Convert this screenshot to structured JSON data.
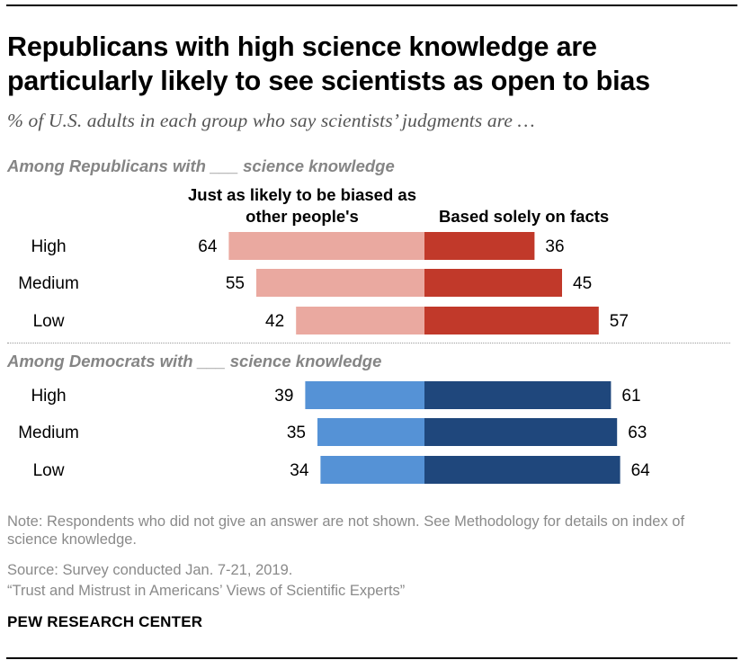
{
  "title": "Republicans with high science knowledge are particularly likely to see scientists as open to bias",
  "subtitle": "% of U.S. adults in each group who say scientists’ judgments are …",
  "legend": {
    "left": "Just as likely to be biased as other people's",
    "right": "Based solely on facts"
  },
  "chart_data": {
    "type": "bar",
    "orientation": "diverging-horizontal",
    "title": "Republicans with high science knowledge are particularly likely to see scientists as open to bias",
    "series_names": [
      "Just as likely to be biased as other people's",
      "Based solely on facts"
    ],
    "groups": [
      {
        "label": "Among Republicans with ___ science knowledge",
        "categories": [
          "High",
          "Medium",
          "Low"
        ],
        "biased": [
          64,
          55,
          42
        ],
        "facts": [
          36,
          45,
          57
        ],
        "colors": {
          "biased": "#eaa9a0",
          "facts": "#c1392a"
        }
      },
      {
        "label": "Among Democrats with ___ science knowledge",
        "categories": [
          "High",
          "Medium",
          "Low"
        ],
        "biased": [
          39,
          35,
          34
        ],
        "facts": [
          61,
          63,
          64
        ],
        "colors": {
          "biased": "#5592d6",
          "facts": "#1f477c"
        }
      }
    ]
  },
  "notes": {
    "note": "Note: Respondents who did not give an answer are not shown. See Methodology for details on index of science knowledge.",
    "source": "Source: Survey conducted Jan. 7-21, 2019.",
    "report": "“Trust and Mistrust in Americans’ Views of Scientific Experts”"
  },
  "brand": "PEW RESEARCH CENTER"
}
